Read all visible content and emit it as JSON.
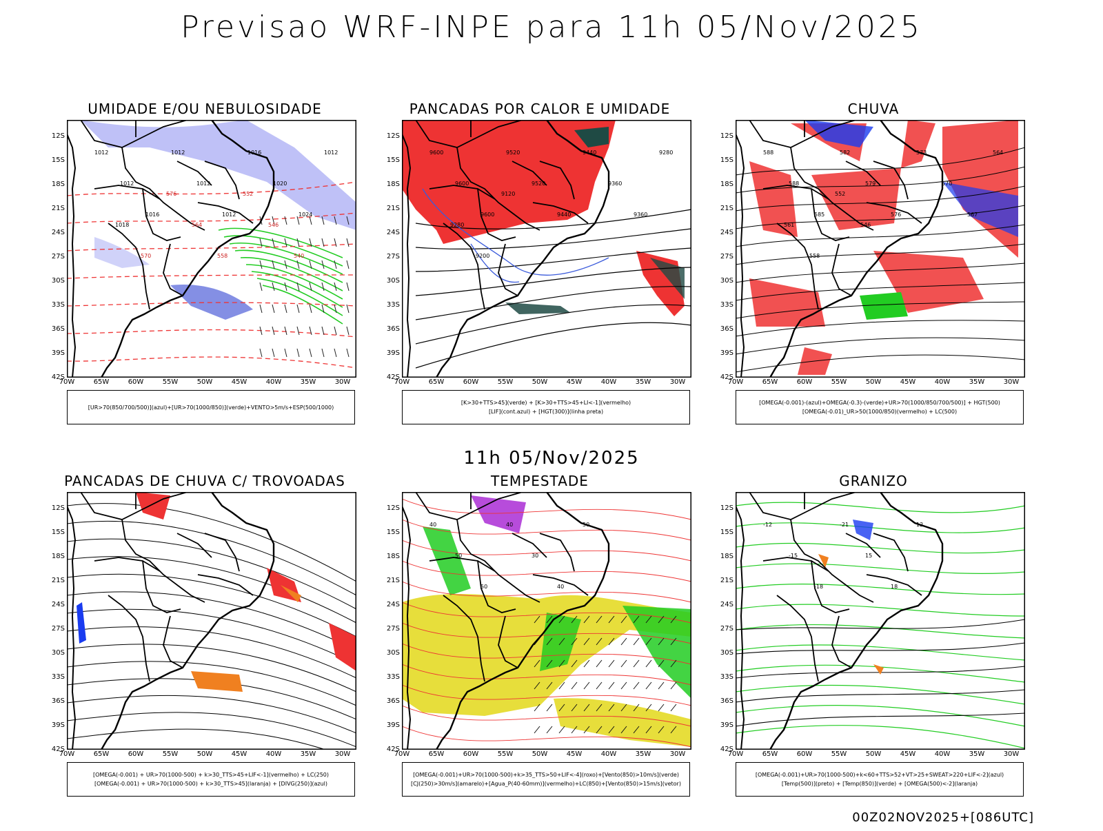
{
  "title": "Previsao WRF-INPE  para 11h 05/Nov/2025",
  "mid_label": "11h 05/Nov/2025",
  "footer": "00Z02NOV2025+[086UTC]",
  "latitudes": [
    "12S",
    "15S",
    "18S",
    "21S",
    "24S",
    "27S",
    "30S",
    "33S",
    "36S",
    "39S",
    "42S"
  ],
  "longitudes": [
    "70W",
    "65W",
    "60W",
    "55W",
    "50W",
    "45W",
    "40W",
    "35W",
    "30W"
  ],
  "colors": {
    "blue": "#8a8ef0",
    "green": "#22cc22",
    "red": "#ee3333",
    "dark_teal": "#1f4a44",
    "yellow": "#e6dc30",
    "orange": "#f08020",
    "purple": "#9900cc",
    "pure_blue": "#1a3cf0"
  },
  "panels": [
    {
      "title": "UMIDADE E/OU NEBULOSIDADE",
      "legend": [
        "[UR>70(850/700/500)](azul)+[UR>70(1000/850)](verde)+VENTO>5m/s+ESP(500/1000)"
      ],
      "labels": [
        "1012",
        "1012",
        "1016",
        "1012",
        "1012",
        "1012",
        "1016",
        "1020",
        "1024",
        "1012",
        "1018",
        "570",
        "576",
        "564",
        "558",
        "552",
        "546",
        "540"
      ]
    },
    {
      "title": "PANCADAS POR CALOR E UMIDADE",
      "legend": [
        "[K>30+TTS>45](verde) + [K>30+TTS>45+LI<-1](vermelho)",
        "[LIF](cont.azul) + [HGT(300)](linha preta)"
      ],
      "labels": [
        "9600",
        "9600",
        "9600",
        "9520",
        "9520",
        "9440",
        "9440",
        "9360",
        "9360",
        "9280",
        "9280",
        "9200",
        "9120"
      ]
    },
    {
      "title": "CHUVA",
      "legend": [
        "[OMEGA(-0.001)-(azul)+OMEGA(-0.3)-(verde)+UR>70(1000/850/700/500)] + HGT(500)",
        "[OMEGA(-0.01)_UR>50(1000/850)(vermelho) + LC(500)"
      ],
      "labels": [
        "588",
        "588",
        "585",
        "582",
        "579",
        "576",
        "573",
        "570",
        "567",
        "564",
        "561",
        "558",
        "552",
        "546"
      ]
    },
    {
      "title": "PANCADAS DE CHUVA C/ TROVOADAS",
      "legend": [
        "[OMEGA(-0.001) + UR>70(1000-500) + k>30_TTS>45+LIF<-1](vermelho) + LC(250)",
        "[OMEGA(-0.001) + UR>70(1000-500) + k>30_TTS>45](laranja) + [DIVG(250)](azul)"
      ],
      "labels": []
    },
    {
      "title": "TEMPESTADE",
      "legend": [
        "[OMEGA(-0.001)+UR>70(1000-500)+k>35_TTS>50+LIF<-4](roxo)+[Vento(850)>10m/s](verde)",
        "[CJ(250)>30m/s](amarelo)+[Agua_P(40-60mm)](vermelho)+LC(850)+[Vento(850)>15m/s](vetor)"
      ],
      "labels": [
        "40",
        "50",
        "50",
        "40",
        "30",
        "40",
        "50"
      ]
    },
    {
      "title": "GRANIZO",
      "legend": [
        "[OMEGA(-0.001)+UR>70(1000-500)+k<60+TTS>52+VT>25+SWEAT>220+LIF<-2](azul)",
        "[Temp(500)](preto) + [Temp(850)](verde) + [OMEGA(500)<-2](laranja)"
      ],
      "labels": [
        "-12",
        "-15",
        "-18",
        "-21",
        "15",
        "18",
        "12"
      ]
    }
  ]
}
